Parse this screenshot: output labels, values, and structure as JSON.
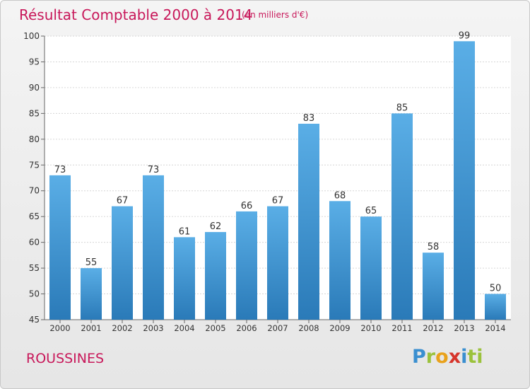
{
  "chart_data": {
    "type": "bar",
    "title": "Résultat Comptable 2000 à 2014",
    "subtitle": "(en milliers d'€)",
    "categories": [
      "2000",
      "2001",
      "2002",
      "2003",
      "2004",
      "2005",
      "2006",
      "2007",
      "2008",
      "2009",
      "2010",
      "2011",
      "2012",
      "2013",
      "2014"
    ],
    "values": [
      73,
      55,
      67,
      73,
      61,
      62,
      66,
      67,
      83,
      68,
      65,
      85,
      58,
      99,
      50
    ],
    "ylim": [
      45,
      100
    ],
    "yticks": [
      45,
      50,
      55,
      60,
      65,
      70,
      75,
      80,
      85,
      90,
      95,
      100
    ],
    "grid": true,
    "bar_color_top": "#5aaee6",
    "bar_color_bottom": "#2a7ab8"
  },
  "commune": "ROUSSINES",
  "logo": [
    "P",
    "r",
    "o",
    "x",
    "i",
    "ti"
  ]
}
